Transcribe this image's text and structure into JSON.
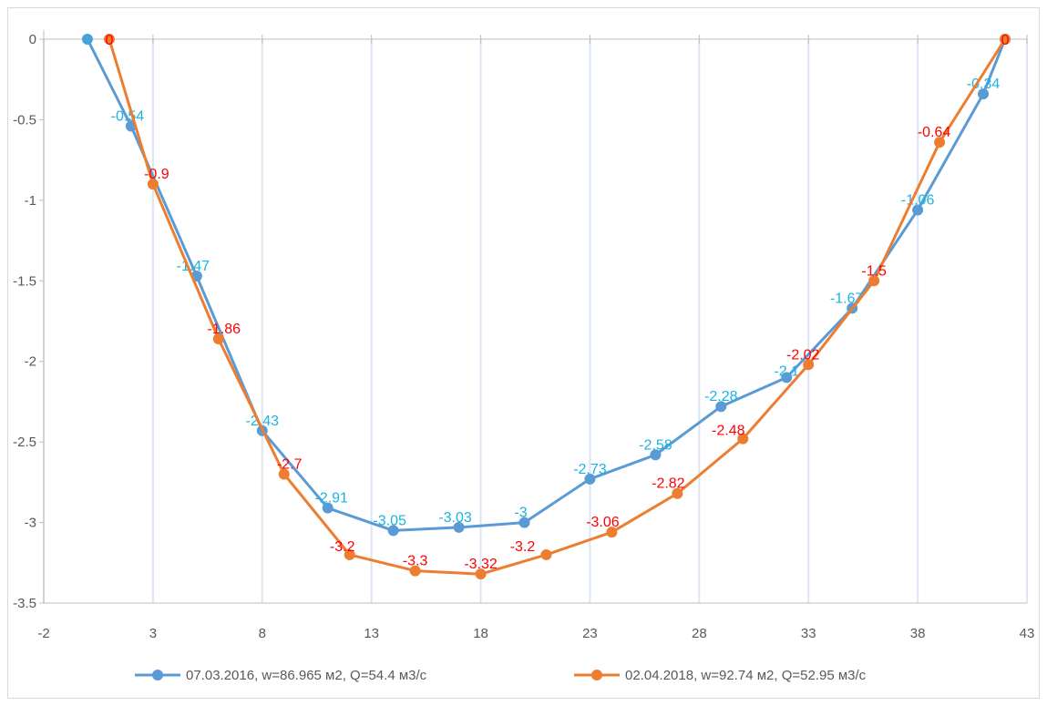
{
  "chart_data": {
    "type": "line",
    "title": "",
    "xlabel": "",
    "ylabel": "",
    "xlim": [
      -2,
      43
    ],
    "ylim": [
      -3.5,
      0
    ],
    "x_ticks": [
      -2,
      3,
      8,
      13,
      18,
      23,
      28,
      33,
      38,
      43
    ],
    "y_ticks": [
      0,
      -0.5,
      -1,
      -1.5,
      -2,
      -2.5,
      -3,
      -3.5
    ],
    "grid": "vertical",
    "legend_position": "bottom",
    "series": [
      {
        "name": "07.03.2016, w=86.965 м2, Q=54.4 м3/с",
        "color": "#5b9bd5",
        "label_color": "#1ab4e0",
        "x": [
          0,
          2,
          5,
          8,
          11,
          14,
          17,
          20,
          23,
          26,
          29,
          32,
          35,
          38,
          41,
          42
        ],
        "y": [
          0,
          -0.54,
          -1.47,
          -2.43,
          -2.91,
          -3.05,
          -3.03,
          -3,
          -2.73,
          -2.58,
          -2.28,
          -2.1,
          -1.67,
          -1.06,
          -0.34,
          0
        ],
        "labels": [
          "0",
          "-0.54",
          "-1.47",
          "-2.43",
          "-2.91",
          "-3.05",
          "-3.03",
          "-3",
          "-2.73",
          "-2.58",
          "-2.28",
          "-2.1",
          "-1.67",
          "-1.06",
          "-0.34",
          "0"
        ]
      },
      {
        "name": "02.04.2018, w=92.74 м2, Q=52.95 м3/с",
        "color": "#ed7d31",
        "label_color": "#ff0000",
        "x": [
          1,
          3,
          6,
          9,
          12,
          15,
          18,
          21,
          24,
          27,
          30,
          33,
          36,
          39,
          42
        ],
        "y": [
          0,
          -0.9,
          -1.86,
          -2.7,
          -3.2,
          -3.3,
          -3.32,
          -3.2,
          -3.06,
          -2.82,
          -2.48,
          -2.02,
          -1.5,
          -0.64,
          0
        ],
        "labels": [
          "0",
          "-0.9",
          "-1.86",
          "-2.7",
          "-3.2",
          "-3.3",
          "-3.32",
          "-3.2",
          "-3.06",
          "-2.82",
          "-2.48",
          "-2.02",
          "-1.5",
          "-0.64",
          "0"
        ]
      }
    ]
  }
}
